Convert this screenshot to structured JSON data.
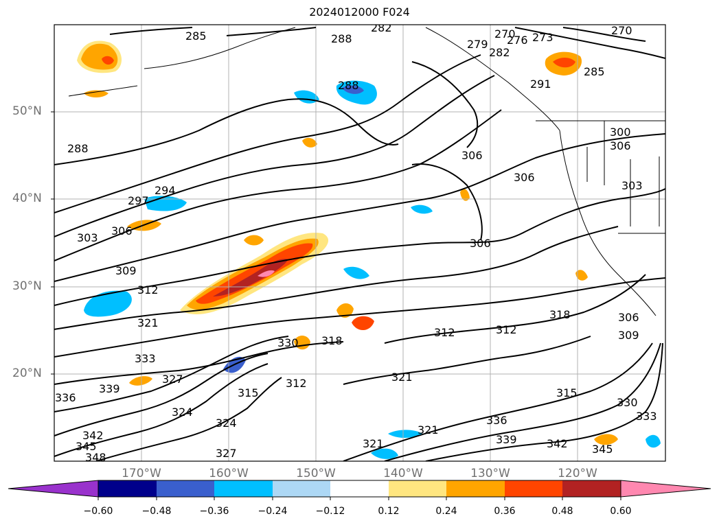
{
  "title": "2024012000 F024",
  "lat_labels": [
    "50°N",
    "40°N",
    "30°N",
    "20°N"
  ],
  "lon_labels": [
    "170°W",
    "160°W",
    "150°W",
    "140°W",
    "130°W",
    "120°W"
  ],
  "colorbar": {
    "ticks": [
      "−0.60",
      "−0.48",
      "−0.36",
      "−0.24",
      "−0.12",
      "0.12",
      "0.24",
      "0.36",
      "0.48",
      "0.60"
    ],
    "colors": [
      "#9932cc",
      "#00008b",
      "#3a5fcd",
      "#00bfff",
      "#add8f5",
      "#ffffff",
      "#ffe680",
      "#ffa500",
      "#ff4500",
      "#b22222",
      "#ff88b0"
    ]
  },
  "contour_labels": [
    "285",
    "288",
    "282",
    "270",
    "273",
    "279",
    "282",
    "276",
    "270",
    "288",
    "291",
    "285",
    "288",
    "306",
    "306",
    "300",
    "306",
    "303",
    "294",
    "297",
    "303",
    "306",
    "306",
    "309",
    "312",
    "321",
    "318",
    "312",
    "318",
    "312",
    "306",
    "309",
    "330",
    "333",
    "327",
    "321",
    "315",
    "312",
    "315",
    "324",
    "321",
    "324",
    "336",
    "339",
    "342",
    "345",
    "327",
    "330",
    "333",
    "336",
    "342",
    "345",
    "348",
    "339",
    "321"
  ]
}
